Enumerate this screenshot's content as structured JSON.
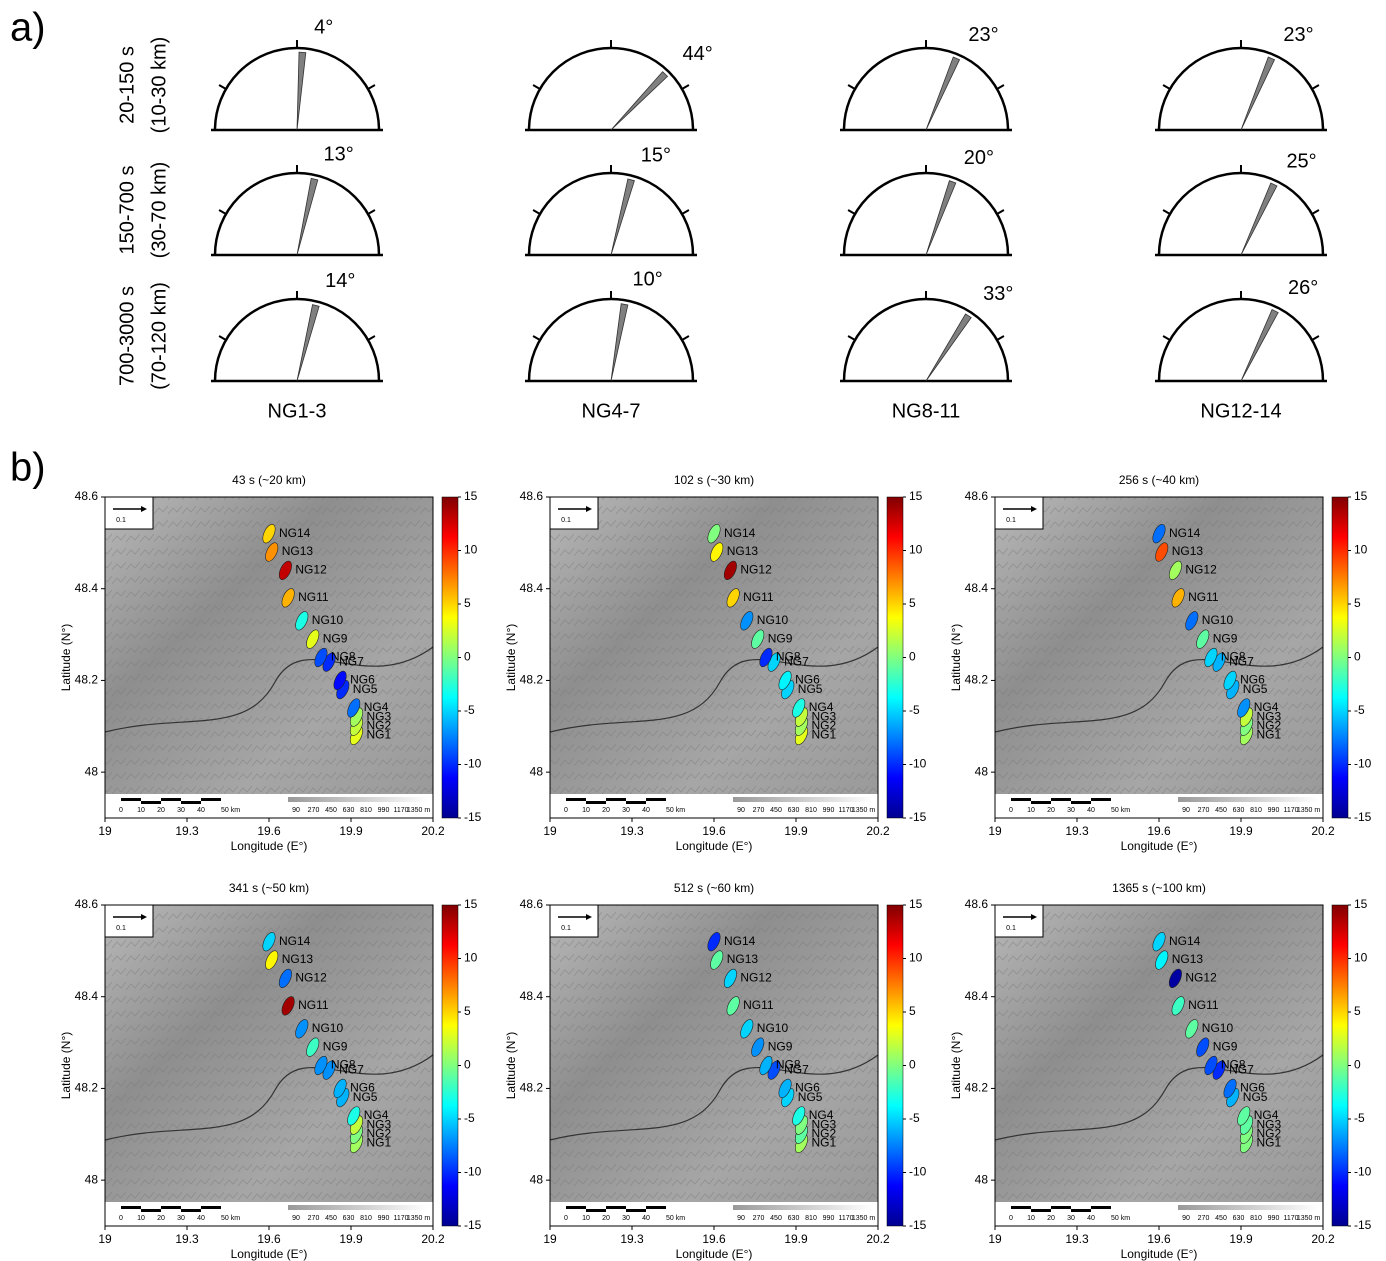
{
  "panel_a": {
    "label": "a)",
    "rows": [
      {
        "period": "20-150 s",
        "depth": "(10-30 km)"
      },
      {
        "period": "150-700 s",
        "depth": "(30-70 km)"
      },
      {
        "period": "700-3000 s",
        "depth": "(70-120 km)"
      }
    ],
    "columns": [
      "NG1-3",
      "NG4-7",
      "NG8-11",
      "NG12-14"
    ],
    "angles": [
      [
        4,
        44,
        23,
        23
      ],
      [
        13,
        15,
        20,
        25
      ],
      [
        14,
        10,
        33,
        26
      ]
    ],
    "angle_labels": [
      [
        "4°",
        "44°",
        "23°",
        "23°"
      ],
      [
        "13°",
        "15°",
        "20°",
        "25°"
      ],
      [
        "14°",
        "10°",
        "33°",
        "26°"
      ]
    ]
  },
  "panel_b": {
    "label": "b)",
    "xlabel": "Longitude (E°)",
    "ylabel": "Latitude (N°)",
    "xlim": [
      19,
      20.2
    ],
    "xticks": [
      19,
      19.3,
      19.6,
      19.9,
      20.2
    ],
    "ylim": [
      47.9,
      48.6
    ],
    "yticks": [
      48,
      48.2,
      48.4,
      48.6
    ],
    "clim": [
      -15,
      15
    ],
    "cticks": [
      15,
      10,
      5,
      0,
      -5,
      -10,
      -15
    ],
    "arrow_label": "0.1",
    "scale_labels": [
      "0",
      "10",
      "20",
      "30",
      "40",
      "50 km"
    ],
    "elevation_labels": [
      "90",
      "270",
      "450",
      "630",
      "810",
      "990",
      "1170",
      "1350 m"
    ],
    "stations": [
      {
        "name": "NG1",
        "lon": 19.92,
        "lat": 48.08
      },
      {
        "name": "NG2",
        "lon": 19.92,
        "lat": 48.1
      },
      {
        "name": "NG3",
        "lon": 19.92,
        "lat": 48.12
      },
      {
        "name": "NG4",
        "lon": 19.91,
        "lat": 48.14
      },
      {
        "name": "NG5",
        "lon": 19.87,
        "lat": 48.18
      },
      {
        "name": "NG6",
        "lon": 19.86,
        "lat": 48.2
      },
      {
        "name": "NG7",
        "lon": 19.82,
        "lat": 48.24
      },
      {
        "name": "NG8",
        "lon": 19.79,
        "lat": 48.25
      },
      {
        "name": "NG9",
        "lon": 19.76,
        "lat": 48.29
      },
      {
        "name": "NG10",
        "lon": 19.72,
        "lat": 48.33
      },
      {
        "name": "NG11",
        "lon": 19.67,
        "lat": 48.38
      },
      {
        "name": "NG12",
        "lon": 19.66,
        "lat": 48.44
      },
      {
        "name": "NG13",
        "lon": 19.61,
        "lat": 48.48
      },
      {
        "name": "NG14",
        "lon": 19.6,
        "lat": 48.52
      }
    ],
    "maps": [
      {
        "title": "43 s (~20 km)",
        "values": [
          3,
          2,
          1,
          -8,
          -10,
          -11,
          -10,
          -9,
          3,
          -3,
          6,
          13,
          7,
          5
        ]
      },
      {
        "title": "102 s (~30 km)",
        "values": [
          3,
          1,
          2,
          -3,
          -5,
          -4,
          -5,
          -10,
          -1,
          -7,
          5,
          14,
          4,
          0
        ]
      },
      {
        "title": "256 s (~40 km)",
        "values": [
          1,
          0,
          2,
          -7,
          -6,
          -5,
          -6,
          -5,
          -1,
          -8,
          6,
          1,
          9,
          -8
        ]
      },
      {
        "title": "341 s (~50 km)",
        "values": [
          1,
          0,
          2,
          -3,
          -6,
          -6,
          -7,
          -7,
          -2,
          -7,
          14,
          -8,
          4,
          -5
        ]
      },
      {
        "title": "512 s (~60 km)",
        "values": [
          1,
          -1,
          0,
          -3,
          -5,
          -6,
          -9,
          -6,
          -7,
          -5,
          -1,
          -5,
          -1,
          -10
        ]
      },
      {
        "title": "1365 s (~100 km)",
        "values": [
          0,
          0,
          -1,
          -1,
          -6,
          -8,
          -10,
          -9,
          -9,
          -1,
          -2,
          -14,
          -4,
          -5
        ]
      }
    ]
  }
}
